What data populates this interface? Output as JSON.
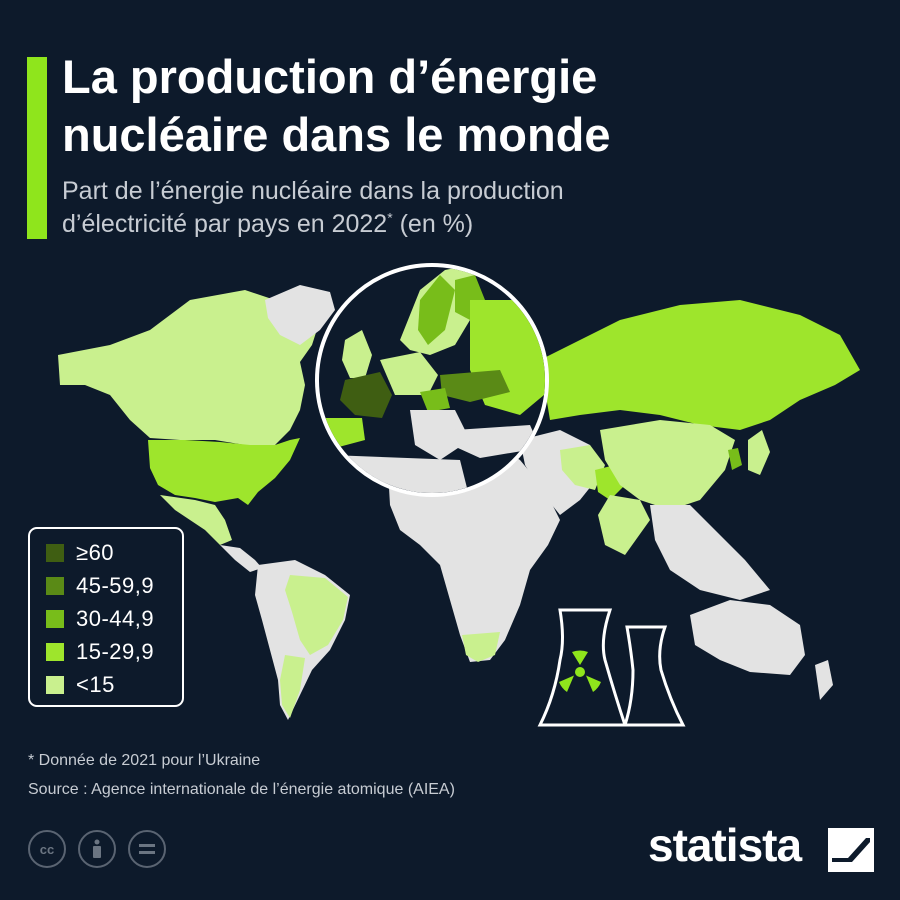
{
  "header": {
    "title_line1": "La production d’énergie",
    "title_line2": "nucléaire dans le monde",
    "subtitle_line1": "Part de l’énergie nucléaire dans la production",
    "subtitle_line2": "d’électricité par pays en 2022",
    "subtitle_marker": "*",
    "subtitle_unit": " (en %)"
  },
  "legend": {
    "items": [
      {
        "label": "≥60",
        "color": "#3f5e12"
      },
      {
        "label": "45-59,9",
        "color": "#5a8a16"
      },
      {
        "label": "30-44,9",
        "color": "#78bd1a"
      },
      {
        "label": "15-29,9",
        "color": "#9ee52c"
      },
      {
        "label": "<15",
        "color": "#c9f08e"
      }
    ]
  },
  "map_colors": {
    "no_data": "#e3e3e3",
    "background": "#0d1a2b"
  },
  "footer": {
    "note": "* Donnée de 2021 pour l’Ukraine",
    "source": "Source : Agence internationale de l’énergie atomique (AIEA)",
    "brand": "statista",
    "license_icons": [
      "cc-icon",
      "by-icon",
      "nd-icon"
    ]
  }
}
